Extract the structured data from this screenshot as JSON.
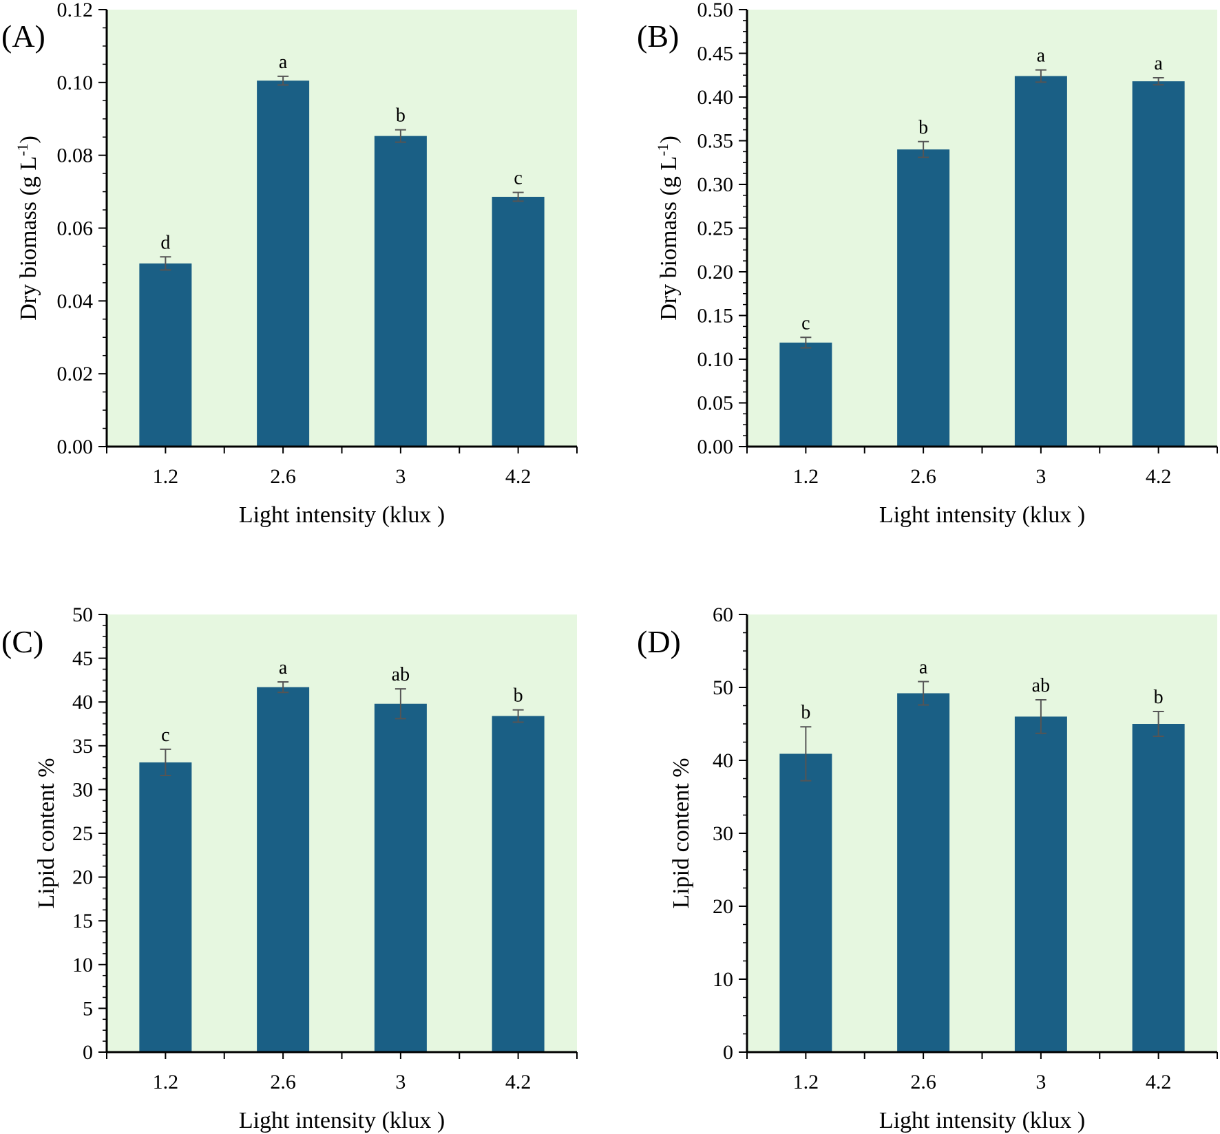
{
  "colors": {
    "plot_bg": "#e6f7e0",
    "bar": "#1a5f85",
    "axis": "#000000",
    "error_bar": "#555555"
  },
  "chart_data": [
    {
      "type": "bar",
      "panel_label": "(A)",
      "categories": [
        "1.2",
        "2.6",
        "3",
        "4.2"
      ],
      "values": [
        0.0503,
        0.1005,
        0.0853,
        0.0686
      ],
      "errors": [
        0.0018,
        0.0012,
        0.0017,
        0.0012
      ],
      "significance": [
        "d",
        "a",
        "b",
        "c"
      ],
      "xlabel": "Light intensity (klux )",
      "ylabel": "Dry biomass (g L",
      "ylabel_sup": "-1",
      "ylabel_end": ")",
      "ylim": [
        0,
        0.12
      ],
      "yticks": [
        "0.00",
        "0.02",
        "0.04",
        "0.06",
        "0.08",
        "0.10",
        "0.12"
      ],
      "grid": false
    },
    {
      "type": "bar",
      "panel_label": "(B)",
      "categories": [
        "1.2",
        "2.6",
        "3",
        "4.2"
      ],
      "values": [
        0.119,
        0.34,
        0.424,
        0.418
      ],
      "errors": [
        0.006,
        0.009,
        0.007,
        0.004
      ],
      "significance": [
        "c",
        "b",
        "a",
        "a"
      ],
      "xlabel": "Light intensity (klux )",
      "ylabel": "Dry biomass (g L",
      "ylabel_sup": "-1",
      "ylabel_end": ")",
      "ylim": [
        0,
        0.5
      ],
      "yticks": [
        "0.00",
        "0.05",
        "0.10",
        "0.15",
        "0.20",
        "0.25",
        "0.30",
        "0.35",
        "0.40",
        "0.45",
        "0.50"
      ],
      "grid": false
    },
    {
      "type": "bar",
      "panel_label": "(C)",
      "categories": [
        "1.2",
        "2.6",
        "3",
        "4.2"
      ],
      "values": [
        33.1,
        41.7,
        39.8,
        38.4
      ],
      "errors": [
        1.5,
        0.6,
        1.7,
        0.7
      ],
      "significance": [
        "c",
        "a",
        "ab",
        "b"
      ],
      "xlabel": "Light intensity (klux )",
      "ylabel": "Lipid content %",
      "ylabel_sup": "",
      "ylabel_end": "",
      "ylim": [
        0,
        50
      ],
      "yticks": [
        "0",
        "5",
        "10",
        "15",
        "20",
        "25",
        "30",
        "35",
        "40",
        "45",
        "50"
      ],
      "grid": false
    },
    {
      "type": "bar",
      "panel_label": "(D)",
      "categories": [
        "1.2",
        "2.6",
        "3",
        "4.2"
      ],
      "values": [
        40.9,
        49.2,
        46.0,
        45.0
      ],
      "errors": [
        3.7,
        1.6,
        2.3,
        1.7
      ],
      "significance": [
        "b",
        "a",
        "ab",
        "b"
      ],
      "xlabel": "Light intensity (klux )",
      "ylabel": "Lipid content %",
      "ylabel_sup": "",
      "ylabel_end": "",
      "ylim": [
        0,
        60
      ],
      "yticks": [
        "0",
        "10",
        "20",
        "30",
        "40",
        "50",
        "60"
      ],
      "grid": false
    }
  ]
}
